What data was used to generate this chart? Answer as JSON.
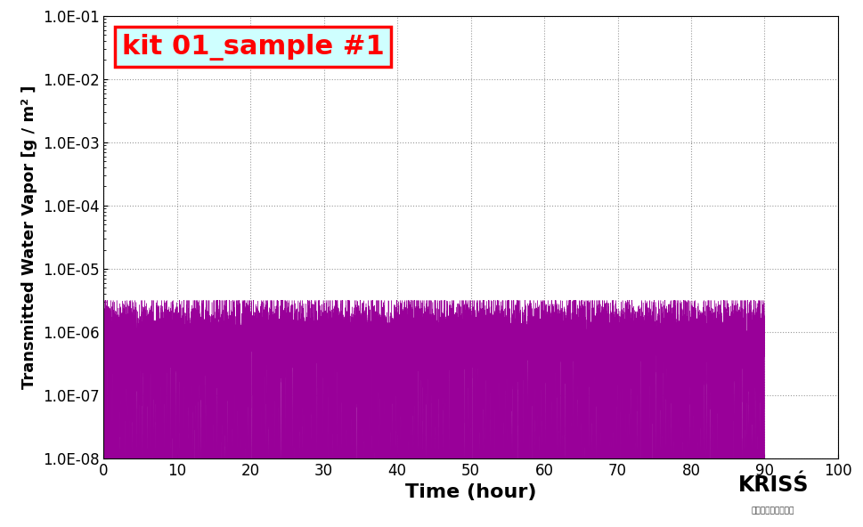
{
  "title": "kit 01_sample #1",
  "title_color": "red",
  "title_bg_color": "#cfffff",
  "title_border_color": "red",
  "xlabel": "Time (hour)",
  "ylabel": "Transmitted Water Vapor [g / m² ]",
  "xlim": [
    0,
    100
  ],
  "ylim_log": [
    1e-08,
    0.1
  ],
  "xticks": [
    0,
    10,
    20,
    30,
    40,
    50,
    60,
    70,
    80,
    90,
    100
  ],
  "yticks": [
    1e-08,
    1e-07,
    1e-06,
    1e-05,
    0.0001,
    0.001,
    0.01,
    0.1
  ],
  "line_color": "#990099",
  "grid_color": "#999999",
  "grid_style": ":",
  "background_color": "#ffffff",
  "x_max_hours": 90,
  "n_points": 18000,
  "base_level_log": -6.05,
  "noise_std_log": 0.28,
  "floor_log": -8.0,
  "spike_down_prob": 0.25,
  "spike_down_scale": 1.2,
  "spike_up_prob": 0.002,
  "spike_up_scale": 0.6,
  "clip_max_log": -5.5,
  "kriss_text": "KRISŚ",
  "kriss_subtext": "한국표준과학연구원",
  "xlabel_fontsize": 16,
  "ylabel_fontsize": 13,
  "tick_fontsize": 12,
  "title_fontsize": 22,
  "ytick_labels": [
    "1.0E-08",
    "1.0E-07",
    "1.0E-06",
    "1.0E-05",
    "1.0E-04",
    "1.0E-03",
    "1.0E-02",
    "1.0E-01"
  ]
}
